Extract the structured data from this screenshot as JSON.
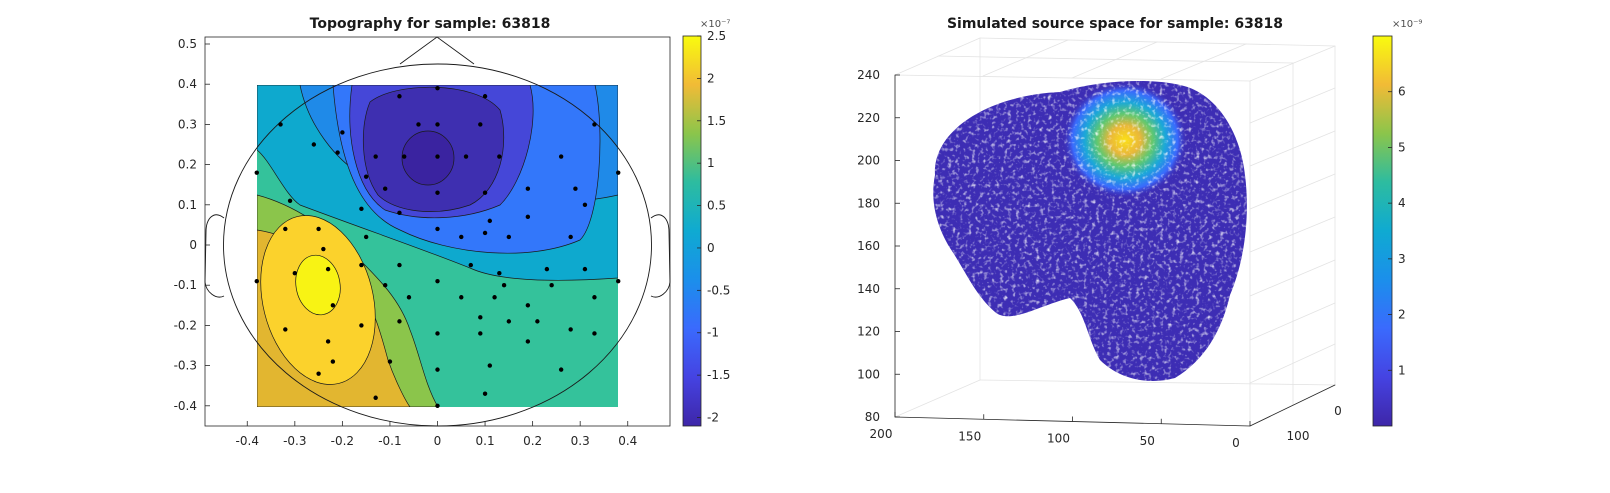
{
  "chart_data": [
    {
      "type": "heatmap",
      "title": "Topography for sample: 63818",
      "xlim": [
        -0.49,
        0.49
      ],
      "ylim": [
        -0.45,
        0.52
      ],
      "x_ticks": [
        "-0.4",
        "-0.3",
        "-0.2",
        "-0.1",
        "0",
        "0.1",
        "0.2",
        "0.3",
        "0.4"
      ],
      "y_ticks": [
        "0.5",
        "0.4",
        "0.3",
        "0.2",
        "0.1",
        "0",
        "-0.1",
        "-0.2",
        "-0.3",
        "-0.4"
      ],
      "color_range": [
        -2.1e-07,
        2.5e-07
      ],
      "colorbar_ticks": [
        "2.5",
        "2",
        "1.5",
        "1",
        "0.5",
        "0",
        "-0.5",
        "-1",
        "-1.5",
        "-2"
      ],
      "colorbar_exponent": "×10⁻⁷",
      "extrema": [
        {
          "name": "maximum",
          "x": -0.25,
          "y": -0.08,
          "value": 2.5e-07
        },
        {
          "name": "minimum",
          "x": -0.02,
          "y": 0.22,
          "value": -2.1e-07
        }
      ],
      "electrodes": [
        [
          0,
          0.39
        ],
        [
          -0.08,
          0.37
        ],
        [
          0.1,
          0.37
        ],
        [
          -0.33,
          0.3
        ],
        [
          -0.2,
          0.28
        ],
        [
          -0.04,
          0.3
        ],
        [
          0,
          0.3
        ],
        [
          0.09,
          0.3
        ],
        [
          0.33,
          0.3
        ],
        [
          -0.26,
          0.25
        ],
        [
          -0.21,
          0.23
        ],
        [
          -0.13,
          0.22
        ],
        [
          -0.07,
          0.22
        ],
        [
          0,
          0.22
        ],
        [
          0.06,
          0.22
        ],
        [
          0.13,
          0.22
        ],
        [
          0.26,
          0.22
        ],
        [
          -0.38,
          0.18
        ],
        [
          -0.15,
          0.17
        ],
        [
          -0.11,
          0.14
        ],
        [
          0,
          0.13
        ],
        [
          0.1,
          0.13
        ],
        [
          0.19,
          0.14
        ],
        [
          0.29,
          0.14
        ],
        [
          0.38,
          0.18
        ],
        [
          -0.31,
          0.11
        ],
        [
          -0.16,
          0.09
        ],
        [
          -0.08,
          0.08
        ],
        [
          0,
          0.04
        ],
        [
          0.11,
          0.06
        ],
        [
          0.19,
          0.07
        ],
        [
          0.31,
          0.1
        ],
        [
          -0.32,
          0.04
        ],
        [
          -0.25,
          0.04
        ],
        [
          -0.15,
          0.02
        ],
        [
          0.05,
          0.02
        ],
        [
          0.1,
          0.03
        ],
        [
          0.15,
          0.02
        ],
        [
          0.28,
          0.02
        ],
        [
          -0.24,
          -0.01
        ],
        [
          -0.16,
          -0.05
        ],
        [
          -0.08,
          -0.05
        ],
        [
          0.07,
          -0.05
        ],
        [
          0.13,
          -0.07
        ],
        [
          0.23,
          -0.06
        ],
        [
          0.31,
          -0.06
        ],
        [
          -0.38,
          -0.09
        ],
        [
          -0.3,
          -0.07
        ],
        [
          -0.23,
          -0.06
        ],
        [
          0,
          -0.09
        ],
        [
          0.14,
          -0.1
        ],
        [
          0.24,
          -0.1
        ],
        [
          0.38,
          -0.09
        ],
        [
          -0.11,
          -0.1
        ],
        [
          -0.06,
          -0.13
        ],
        [
          0.05,
          -0.13
        ],
        [
          0.12,
          -0.13
        ],
        [
          0.19,
          -0.15
        ],
        [
          0.33,
          -0.13
        ],
        [
          -0.22,
          -0.15
        ],
        [
          -0.16,
          -0.2
        ],
        [
          -0.08,
          -0.19
        ],
        [
          0.09,
          -0.18
        ],
        [
          0.15,
          -0.19
        ],
        [
          0.21,
          -0.19
        ],
        [
          0.28,
          -0.21
        ],
        [
          -0.32,
          -0.21
        ],
        [
          -0.23,
          -0.24
        ],
        [
          0,
          -0.22
        ],
        [
          0.09,
          -0.22
        ],
        [
          0.19,
          -0.24
        ],
        [
          0.33,
          -0.22
        ],
        [
          -0.22,
          -0.29
        ],
        [
          -0.1,
          -0.29
        ],
        [
          0,
          -0.31
        ],
        [
          0.11,
          -0.3
        ],
        [
          0.26,
          -0.31
        ],
        [
          -0.25,
          -0.32
        ],
        [
          0.1,
          -0.37
        ],
        [
          -0.13,
          -0.38
        ],
        [
          0,
          -0.4
        ]
      ]
    },
    {
      "type": "scatter",
      "title": "Simulated source space for sample: 63818",
      "zlim": [
        80,
        240
      ],
      "z_ticks": [
        "240",
        "220",
        "200",
        "180",
        "160",
        "140",
        "120",
        "100",
        "80"
      ],
      "x_ticks": [
        "200",
        "150",
        "100",
        "50",
        "0"
      ],
      "y_ticks": [
        "0",
        "100"
      ],
      "color_range": [
        0,
        7e-09
      ],
      "colorbar_ticks": [
        "6",
        "5",
        "4",
        "3",
        "2",
        "1"
      ],
      "colorbar_exponent": "×10⁻⁹",
      "hotspot": {
        "x": 70,
        "z": 215,
        "value": 7e-09
      }
    }
  ]
}
